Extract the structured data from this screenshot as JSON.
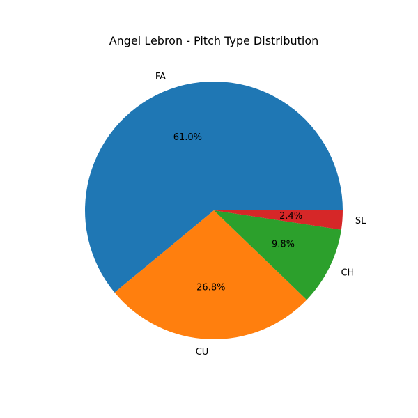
{
  "chart_data": {
    "type": "pie",
    "title": "Angel Lebron - Pitch Type Distribution",
    "categories": [
      "FA",
      "CU",
      "CH",
      "SL"
    ],
    "values": [
      61.0,
      26.8,
      9.8,
      2.4
    ],
    "percent_labels": [
      "61.0%",
      "26.8%",
      "9.8%",
      "2.4%"
    ],
    "colors": [
      "#1f77b4",
      "#ff7f0e",
      "#2ca02c",
      "#d62728"
    ],
    "start_angle_deg": 0,
    "direction": "counterclockwise"
  }
}
